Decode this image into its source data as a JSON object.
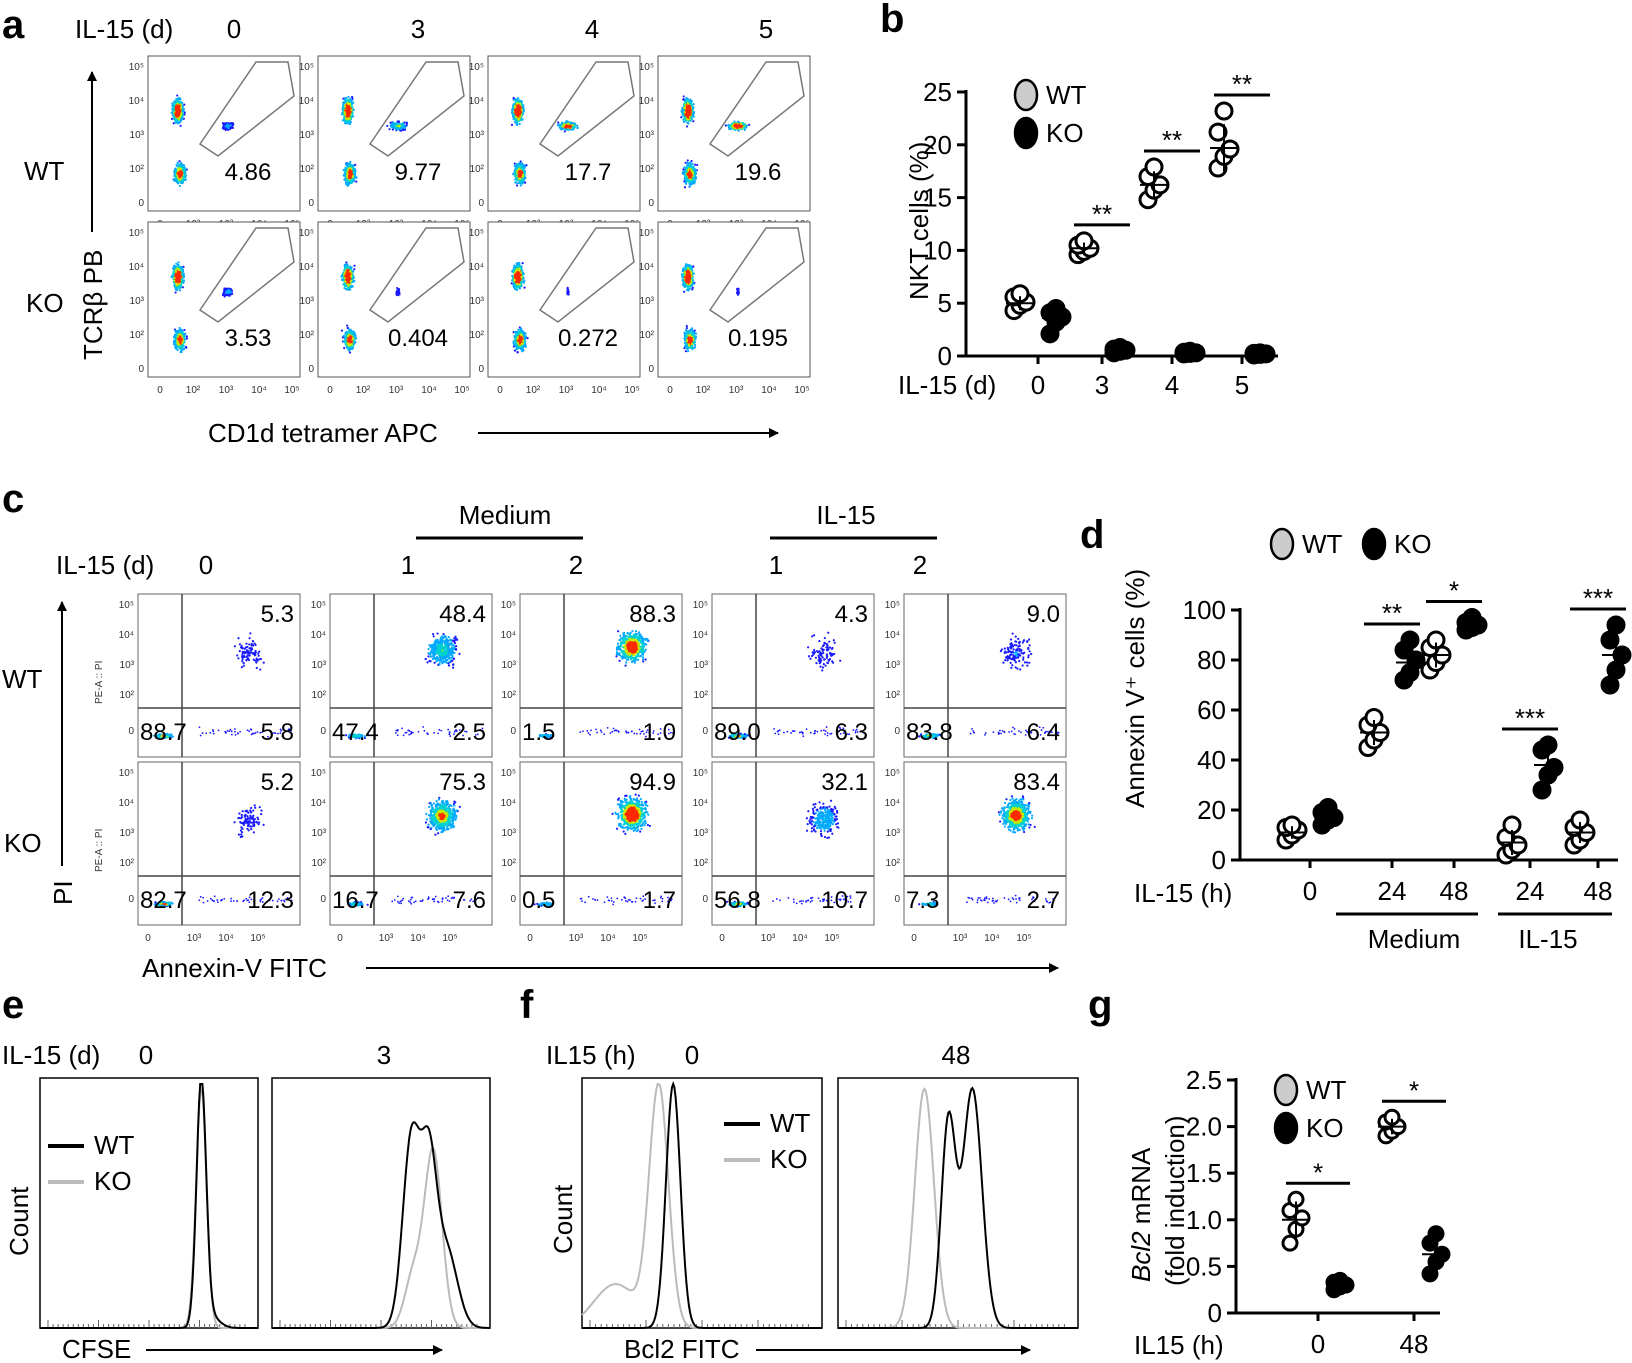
{
  "panel_labels": {
    "a": "a",
    "b": "b",
    "c": "c",
    "d": "d",
    "e": "e",
    "f": "f",
    "g": "g"
  },
  "colors": {
    "wt_fill": "#cccccc",
    "ko_fill": "#000000",
    "axis": "#000000",
    "hist_wt": "#000000",
    "hist_ko": "#bbbbbb",
    "flow_low": "#1a1aff",
    "flow_mid": "#00d0d0",
    "flow_hi": "#ff2a00"
  },
  "panel_a": {
    "condition_label": "IL-15 (d)",
    "days": [
      "0",
      "3",
      "4",
      "5"
    ],
    "rows": [
      "WT",
      "KO"
    ],
    "y_axis_label": "TCRβ PB",
    "x_axis_label": "CD1d tetramer APC",
    "y_ticks": [
      "10⁵",
      "10⁴",
      "10³",
      "10²",
      "0"
    ],
    "x_ticks": [
      "0",
      "10²",
      "10³",
      "10⁴",
      "10⁵"
    ],
    "gate_values": [
      [
        "4.86",
        "9.77",
        "17.7",
        "19.6"
      ],
      [
        "3.53",
        "0.404",
        "0.272",
        "0.195"
      ]
    ]
  },
  "chart_data": [
    {
      "panel": "b",
      "type": "scatter",
      "title": "",
      "xlabel": "IL-15 (d)",
      "ylabel": "NKT cells (%)",
      "ylim": [
        0,
        25
      ],
      "y_ticks": [
        "0",
        "5",
        "10",
        "15",
        "20",
        "25"
      ],
      "categories": [
        "0",
        "3",
        "4",
        "5"
      ],
      "legend": [
        "WT",
        "KO"
      ],
      "series": [
        {
          "name": "WT",
          "means": [
            5.0,
            10.2,
            16.2,
            19.7
          ],
          "points": [
            [
              4.3,
              4.8,
              5.1,
              5.6,
              5.9
            ],
            [
              9.6,
              9.9,
              10.2,
              10.5,
              10.9
            ],
            [
              14.8,
              15.7,
              16.2,
              17.0,
              17.9
            ],
            [
              17.8,
              18.9,
              19.6,
              21.2,
              23.2
            ]
          ]
        },
        {
          "name": "KO",
          "means": [
            3.6,
            0.55,
            0.3,
            0.2
          ],
          "points": [
            [
              2.1,
              3.2,
              3.7,
              4.1,
              4.5
            ],
            [
              0.3,
              0.45,
              0.55,
              0.65,
              0.8
            ],
            [
              0.2,
              0.25,
              0.3,
              0.35,
              0.45
            ],
            [
              0.1,
              0.15,
              0.2,
              0.25,
              0.3
            ]
          ]
        }
      ],
      "significance": [
        "",
        "**",
        "**",
        "**"
      ]
    },
    {
      "panel": "d",
      "type": "scatter",
      "title": "",
      "xlabel": "IL-15 (h)",
      "ylabel": "Annexin V⁺ cells (%)",
      "ylim": [
        0,
        100
      ],
      "y_ticks": [
        "0",
        "20",
        "40",
        "60",
        "80",
        "100"
      ],
      "categories": [
        "0",
        "24",
        "48",
        "24",
        "48"
      ],
      "category_groups": [
        "Medium",
        "IL-15"
      ],
      "legend": [
        "WT",
        "KO"
      ],
      "series": [
        {
          "name": "WT",
          "means": [
            11,
            51,
            82,
            7,
            11
          ],
          "points": [
            [
              8,
              10,
              12,
              13,
              14
            ],
            [
              45,
              48,
              51,
              54,
              57
            ],
            [
              76,
              79,
              82,
              85,
              88
            ],
            [
              2,
              4,
              6,
              9,
              14
            ],
            [
              6,
              8,
              11,
              13,
              16
            ]
          ]
        },
        {
          "name": "KO",
          "means": [
            17,
            79,
            94,
            38,
            82
          ],
          "points": [
            [
              14,
              16,
              17,
              19,
              21
            ],
            [
              72,
              75,
              80,
              84,
              88
            ],
            [
              92,
              93,
              94,
              95,
              97
            ],
            [
              28,
              34,
              37,
              44,
              46
            ],
            [
              70,
              76,
              82,
              88,
              94
            ]
          ]
        }
      ],
      "significance": [
        "",
        "**",
        "*",
        "***",
        "***"
      ]
    },
    {
      "panel": "g",
      "type": "scatter",
      "title": "",
      "xlabel": "IL15 (h)",
      "ylabel_italic": "Bcl2",
      "ylabel_rest": " mRNA",
      "ylabel2": "(fold induction)",
      "ylim": [
        0,
        2.5
      ],
      "y_ticks": [
        "0",
        "0.5",
        "1.0",
        "1.5",
        "2.0",
        "2.5"
      ],
      "categories": [
        "0",
        "48"
      ],
      "legend": [
        "WT",
        "KO"
      ],
      "series": [
        {
          "name": "WT",
          "means": [
            1.0,
            2.0
          ],
          "points": [
            [
              0.75,
              0.9,
              1.02,
              1.1,
              1.22
            ],
            [
              1.9,
              1.95,
              2.0,
              2.05,
              2.1
            ]
          ]
        },
        {
          "name": "KO",
          "means": [
            0.3,
            0.63
          ],
          "points": [
            [
              0.25,
              0.28,
              0.3,
              0.33,
              0.35
            ],
            [
              0.42,
              0.55,
              0.63,
              0.75,
              0.85
            ]
          ]
        }
      ],
      "significance": [
        "*",
        "*"
      ]
    }
  ],
  "panel_c": {
    "condition_label": "IL-15 (d)",
    "group_labels": [
      "Medium",
      "IL-15"
    ],
    "columns": [
      "0",
      "1",
      "2",
      "1",
      "2"
    ],
    "rows": [
      "WT",
      "KO"
    ],
    "y_axis_label": "PI",
    "y_axis_sublabel": "PE-A :: PI",
    "x_axis_label": "Annexin-V FITC",
    "y_ticks": [
      "10⁵",
      "10⁴",
      "10³",
      "10²",
      "0"
    ],
    "x_ticks": [
      "0",
      "10³",
      "10⁴",
      "10⁵"
    ],
    "quadrants": [
      [
        [
          "5.3",
          "88.7",
          "5.8"
        ],
        [
          "48.4",
          "47.4",
          "2.5"
        ],
        [
          "88.3",
          "1.5",
          "1.0"
        ],
        [
          "4.3",
          "89.0",
          "6.3"
        ],
        [
          "9.0",
          "83.8",
          "6.4"
        ]
      ],
      [
        [
          "5.2",
          "82.7",
          "12.3"
        ],
        [
          "75.3",
          "16.7",
          "7.6"
        ],
        [
          "94.9",
          "0.5",
          "1.7"
        ],
        [
          "32.1",
          "56.8",
          "10.7"
        ],
        [
          "83.4",
          "7.3",
          "2.7"
        ]
      ]
    ]
  },
  "panel_e": {
    "condition_label": "IL-15 (d)",
    "days": [
      "0",
      "3"
    ],
    "legend": [
      "WT",
      "KO"
    ],
    "y_axis_label": "Count",
    "x_axis_label": "CFSE"
  },
  "panel_f": {
    "condition_label": "IL15 (h)",
    "hours": [
      "0",
      "48"
    ],
    "legend": [
      "WT",
      "KO"
    ],
    "y_axis_label": "Count",
    "x_axis_label": "Bcl2 FITC"
  }
}
